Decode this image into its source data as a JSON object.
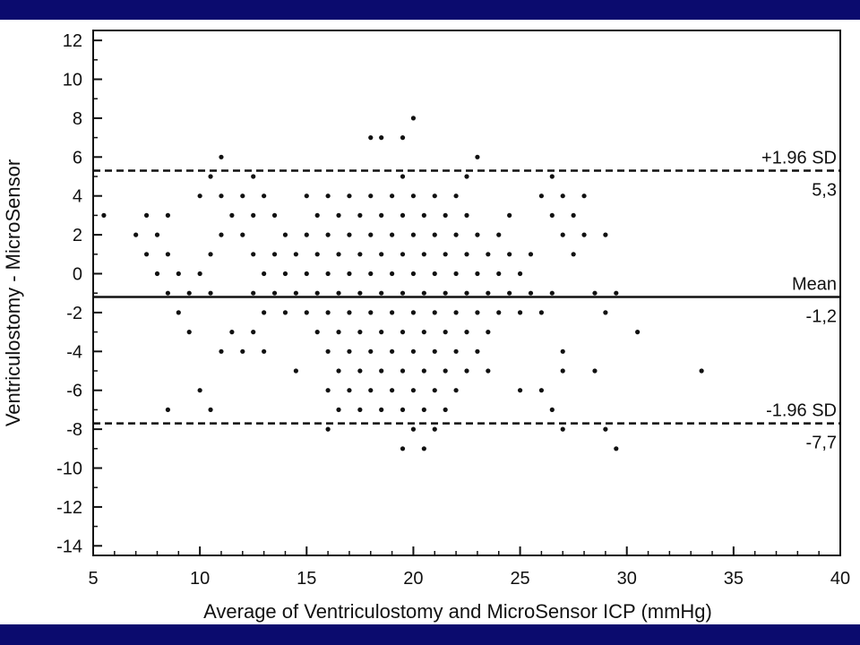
{
  "colors": {
    "frame_bar": "#0b0b6e",
    "background": "#ffffff",
    "ink": "#111111"
  },
  "chart_data": {
    "type": "scatter",
    "title": "",
    "xlabel": "Average of Ventriculostomy and MicroSensor ICP (mmHg)",
    "ylabel": "Ventriculostomy - MicroSensor",
    "xlim": [
      5,
      40
    ],
    "ylim": [
      -15,
      13
    ],
    "x_ticks": [
      5,
      10,
      15,
      20,
      25,
      30,
      35,
      40
    ],
    "y_ticks": [
      -14,
      -12,
      -10,
      -8,
      -6,
      -4,
      -2,
      0,
      2,
      4,
      6,
      8,
      10,
      12
    ],
    "grid": false,
    "reference_lines": [
      {
        "name": "upper_loa",
        "label": "+1.96 SD",
        "value_label": "5,3",
        "y": 5.3,
        "style": "dashed"
      },
      {
        "name": "mean",
        "label": "Mean",
        "value_label": "-1,2",
        "y": -1.2,
        "style": "solid"
      },
      {
        "name": "lower_loa",
        "label": "-1.96 SD",
        "value_label": "-7,7",
        "y": -7.7,
        "style": "dashed"
      }
    ],
    "points": [
      [
        5.5,
        3
      ],
      [
        7,
        2
      ],
      [
        7.5,
        3
      ],
      [
        7.5,
        1
      ],
      [
        8,
        2
      ],
      [
        8,
        0
      ],
      [
        8.5,
        3
      ],
      [
        8.5,
        1
      ],
      [
        8.5,
        -1
      ],
      [
        8.5,
        -7
      ],
      [
        9,
        0
      ],
      [
        9,
        -2
      ],
      [
        9.5,
        -1
      ],
      [
        9.5,
        -3
      ],
      [
        10,
        4
      ],
      [
        10,
        0
      ],
      [
        10,
        -6
      ],
      [
        10.5,
        5
      ],
      [
        10.5,
        1
      ],
      [
        10.5,
        -1
      ],
      [
        10.5,
        -7
      ],
      [
        11,
        6
      ],
      [
        11,
        4
      ],
      [
        11,
        2
      ],
      [
        11,
        -4
      ],
      [
        11.5,
        3
      ],
      [
        11.5,
        -3
      ],
      [
        12,
        4
      ],
      [
        12,
        2
      ],
      [
        12,
        -4
      ],
      [
        12.5,
        5
      ],
      [
        12.5,
        3
      ],
      [
        12.5,
        1
      ],
      [
        12.5,
        -1
      ],
      [
        12.5,
        -3
      ],
      [
        13,
        4
      ],
      [
        13,
        0
      ],
      [
        13,
        -2
      ],
      [
        13,
        -4
      ],
      [
        13.5,
        3
      ],
      [
        13.5,
        1
      ],
      [
        13.5,
        -1
      ],
      [
        14,
        2
      ],
      [
        14,
        0
      ],
      [
        14,
        -2
      ],
      [
        14.5,
        1
      ],
      [
        14.5,
        -1
      ],
      [
        14.5,
        -5
      ],
      [
        15,
        4
      ],
      [
        15,
        2
      ],
      [
        15,
        0
      ],
      [
        15,
        -2
      ],
      [
        15.5,
        3
      ],
      [
        15.5,
        1
      ],
      [
        15.5,
        -1
      ],
      [
        15.5,
        -3
      ],
      [
        16,
        4
      ],
      [
        16,
        2
      ],
      [
        16,
        0
      ],
      [
        16,
        -2
      ],
      [
        16,
        -4
      ],
      [
        16,
        -6
      ],
      [
        16,
        -8
      ],
      [
        16.5,
        3
      ],
      [
        16.5,
        1
      ],
      [
        16.5,
        -1
      ],
      [
        16.5,
        -3
      ],
      [
        16.5,
        -5
      ],
      [
        16.5,
        -7
      ],
      [
        17,
        4
      ],
      [
        17,
        2
      ],
      [
        17,
        0
      ],
      [
        17,
        -2
      ],
      [
        17,
        -4
      ],
      [
        17,
        -6
      ],
      [
        17.5,
        3
      ],
      [
        17.5,
        1
      ],
      [
        17.5,
        -1
      ],
      [
        17.5,
        -3
      ],
      [
        17.5,
        -5
      ],
      [
        17.5,
        -7
      ],
      [
        18,
        7
      ],
      [
        18,
        4
      ],
      [
        18,
        2
      ],
      [
        18,
        0
      ],
      [
        18,
        -2
      ],
      [
        18,
        -4
      ],
      [
        18,
        -6
      ],
      [
        18.5,
        7
      ],
      [
        18.5,
        3
      ],
      [
        18.5,
        1
      ],
      [
        18.5,
        -1
      ],
      [
        18.5,
        -3
      ],
      [
        18.5,
        -5
      ],
      [
        18.5,
        -7
      ],
      [
        19,
        4
      ],
      [
        19,
        2
      ],
      [
        19,
        0
      ],
      [
        19,
        -2
      ],
      [
        19,
        -4
      ],
      [
        19,
        -6
      ],
      [
        19.5,
        7
      ],
      [
        19.5,
        5
      ],
      [
        19.5,
        3
      ],
      [
        19.5,
        1
      ],
      [
        19.5,
        -1
      ],
      [
        19.5,
        -3
      ],
      [
        19.5,
        -5
      ],
      [
        19.5,
        -7
      ],
      [
        19.5,
        -9
      ],
      [
        20,
        8
      ],
      [
        20,
        4
      ],
      [
        20,
        2
      ],
      [
        20,
        0
      ],
      [
        20,
        -2
      ],
      [
        20,
        -4
      ],
      [
        20,
        -6
      ],
      [
        20,
        -8
      ],
      [
        20.5,
        3
      ],
      [
        20.5,
        1
      ],
      [
        20.5,
        -1
      ],
      [
        20.5,
        -3
      ],
      [
        20.5,
        -5
      ],
      [
        20.5,
        -7
      ],
      [
        20.5,
        -9
      ],
      [
        21,
        4
      ],
      [
        21,
        2
      ],
      [
        21,
        0
      ],
      [
        21,
        -2
      ],
      [
        21,
        -4
      ],
      [
        21,
        -6
      ],
      [
        21,
        -8
      ],
      [
        21.5,
        3
      ],
      [
        21.5,
        1
      ],
      [
        21.5,
        -1
      ],
      [
        21.5,
        -3
      ],
      [
        21.5,
        -5
      ],
      [
        21.5,
        -7
      ],
      [
        22,
        4
      ],
      [
        22,
        2
      ],
      [
        22,
        0
      ],
      [
        22,
        -2
      ],
      [
        22,
        -4
      ],
      [
        22,
        -6
      ],
      [
        22.5,
        5
      ],
      [
        22.5,
        3
      ],
      [
        22.5,
        1
      ],
      [
        22.5,
        -1
      ],
      [
        22.5,
        -3
      ],
      [
        22.5,
        -5
      ],
      [
        23,
        6
      ],
      [
        23,
        2
      ],
      [
        23,
        0
      ],
      [
        23,
        -2
      ],
      [
        23,
        -4
      ],
      [
        23.5,
        1
      ],
      [
        23.5,
        -1
      ],
      [
        23.5,
        -3
      ],
      [
        23.5,
        -5
      ],
      [
        24,
        2
      ],
      [
        24,
        0
      ],
      [
        24,
        -2
      ],
      [
        24.5,
        3
      ],
      [
        24.5,
        1
      ],
      [
        24.5,
        -1
      ],
      [
        25,
        0
      ],
      [
        25,
        -2
      ],
      [
        25,
        -6
      ],
      [
        25.5,
        1
      ],
      [
        25.5,
        -1
      ],
      [
        26,
        4
      ],
      [
        26,
        -2
      ],
      [
        26,
        -6
      ],
      [
        26.5,
        5
      ],
      [
        26.5,
        3
      ],
      [
        26.5,
        -1
      ],
      [
        26.5,
        -7
      ],
      [
        27,
        4
      ],
      [
        27,
        2
      ],
      [
        27,
        -4
      ],
      [
        27,
        -5
      ],
      [
        27,
        -8
      ],
      [
        27.5,
        3
      ],
      [
        27.5,
        1
      ],
      [
        28,
        4
      ],
      [
        28,
        2
      ],
      [
        28.5,
        -1
      ],
      [
        28.5,
        -5
      ],
      [
        29,
        2
      ],
      [
        29,
        -2
      ],
      [
        29,
        -8
      ],
      [
        29.5,
        -1
      ],
      [
        29.5,
        -9
      ],
      [
        30.5,
        -3
      ],
      [
        33.5,
        -5
      ]
    ]
  }
}
